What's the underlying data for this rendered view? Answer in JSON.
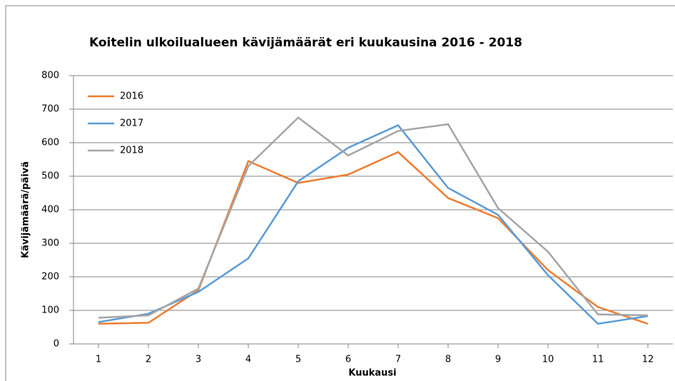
{
  "chart_data": {
    "type": "line",
    "title": "Koitelin ulkoilualueen kävijämäärät eri kuukausina 2016 - 2018",
    "x_label": "Kuukausi",
    "y_label": "Kävijämäärä/päivä",
    "x": [
      1,
      2,
      3,
      4,
      5,
      6,
      7,
      8,
      9,
      10,
      11,
      12
    ],
    "xlim": [
      0.5,
      12.5
    ],
    "xticks": [
      1,
      2,
      3,
      4,
      5,
      6,
      7,
      8,
      9,
      10,
      11,
      12
    ],
    "ylim": [
      0,
      800
    ],
    "yticks": [
      0,
      100,
      200,
      300,
      400,
      500,
      600,
      700,
      800
    ],
    "grid": true,
    "legend": "upper left",
    "series": [
      {
        "name": "2016",
        "color": "#ed7d31",
        "values": [
          60,
          63,
          160,
          545,
          480,
          505,
          572,
          435,
          375,
          220,
          110,
          60
        ]
      },
      {
        "name": "2017",
        "color": "#5b9bd5",
        "values": [
          65,
          90,
          155,
          255,
          485,
          585,
          652,
          465,
          385,
          205,
          60,
          83
        ]
      },
      {
        "name": "2018",
        "color": "#a5a5a5",
        "values": [
          78,
          85,
          165,
          530,
          675,
          562,
          635,
          655,
          405,
          275,
          88,
          85
        ]
      }
    ]
  }
}
